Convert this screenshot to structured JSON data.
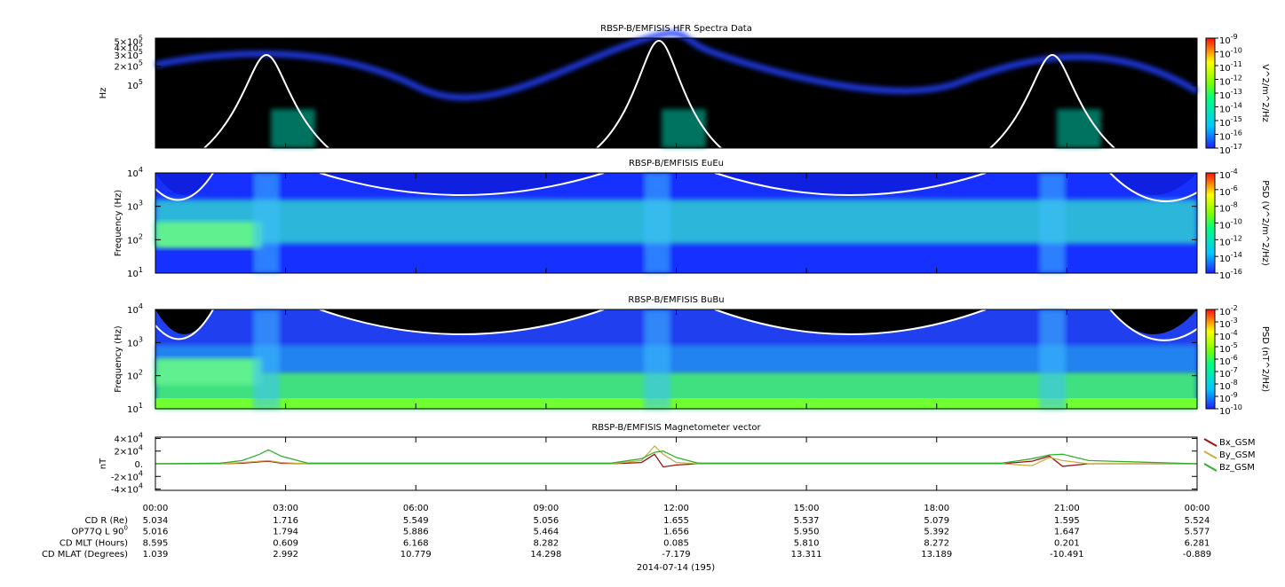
{
  "panels": [
    {
      "title": "RBSP-B/EMFISIS  HFR Spectra Data",
      "ylabel": "Hz",
      "cblabel": "V^2/m^2/Hz",
      "log": true,
      "ylim": [
        10000,
        560000
      ],
      "yticks": [
        {
          "value": 500000,
          "label": "5×10",
          "exp": "5"
        },
        {
          "value": 400000,
          "label": "4×10",
          "exp": "5"
        },
        {
          "value": 300000,
          "label": "3×10",
          "exp": "5"
        },
        {
          "value": 200000,
          "label": "2×10",
          "exp": "5"
        },
        {
          "value": 100000,
          "label": "10",
          "exp": "5"
        }
      ],
      "zlim": [
        1e-17,
        1e-09
      ],
      "zticks": [
        {
          "value": 1e-09,
          "label": "10",
          "exp": "-9"
        },
        {
          "value": 1e-10,
          "label": "10",
          "exp": "-10"
        },
        {
          "value": 1e-11,
          "label": "10",
          "exp": "-11"
        },
        {
          "value": 1e-12,
          "label": "10",
          "exp": "-12"
        },
        {
          "value": 1e-13,
          "label": "10",
          "exp": "-13"
        },
        {
          "value": 1e-14,
          "label": "10",
          "exp": "-14"
        },
        {
          "value": 1e-15,
          "label": "10",
          "exp": "-15"
        },
        {
          "value": 1e-16,
          "label": "10",
          "exp": "-16"
        },
        {
          "value": 1e-17,
          "label": "10",
          "exp": "-17"
        }
      ]
    },
    {
      "title": "RBSP-B/EMFISIS  EuEu",
      "ylabel": "Frequency (Hz)",
      "cblabel": "PSD (V^2/m^2/Hz)",
      "log": true,
      "ylim": [
        10,
        10000
      ],
      "yticks": [
        {
          "value": 10000,
          "label": "10",
          "exp": "4"
        },
        {
          "value": 1000,
          "label": "10",
          "exp": "3"
        },
        {
          "value": 100,
          "label": "10",
          "exp": "2"
        },
        {
          "value": 10,
          "label": "10",
          "exp": "1"
        }
      ],
      "zlim": [
        1e-16,
        0.0001
      ],
      "zticks": [
        {
          "value": 0.0001,
          "label": "10",
          "exp": "-4"
        },
        {
          "value": 1e-06,
          "label": "10",
          "exp": "-6"
        },
        {
          "value": 1e-08,
          "label": "10",
          "exp": "-8"
        },
        {
          "value": 1e-10,
          "label": "10",
          "exp": "-10"
        },
        {
          "value": 1e-12,
          "label": "10",
          "exp": "-12"
        },
        {
          "value": 1e-14,
          "label": "10",
          "exp": "-14"
        },
        {
          "value": 1e-16,
          "label": "10",
          "exp": "-16"
        }
      ]
    },
    {
      "title": "RBSP-B/EMFISIS  BuBu",
      "ylabel": "Frequency (Hz)",
      "cblabel": "PSD (nT^2/Hz)",
      "log": true,
      "ylim": [
        10,
        10000
      ],
      "yticks": [
        {
          "value": 10000,
          "label": "10",
          "exp": "4"
        },
        {
          "value": 1000,
          "label": "10",
          "exp": "3"
        },
        {
          "value": 100,
          "label": "10",
          "exp": "2"
        },
        {
          "value": 10,
          "label": "10",
          "exp": "1"
        }
      ],
      "zlim": [
        1e-10,
        0.01
      ],
      "zticks": [
        {
          "value": 0.01,
          "label": "10",
          "exp": "-2"
        },
        {
          "value": 0.001,
          "label": "10",
          "exp": "-3"
        },
        {
          "value": 0.0001,
          "label": "10",
          "exp": "-4"
        },
        {
          "value": 1e-05,
          "label": "10",
          "exp": "-5"
        },
        {
          "value": 1e-06,
          "label": "10",
          "exp": "-6"
        },
        {
          "value": 1e-07,
          "label": "10",
          "exp": "-7"
        },
        {
          "value": 1e-08,
          "label": "10",
          "exp": "-8"
        },
        {
          "value": 1e-09,
          "label": "10",
          "exp": "-9"
        },
        {
          "value": 1e-10,
          "label": "10",
          "exp": "-10"
        }
      ]
    },
    {
      "title": "RBSP-B/EMFISIS  Magnetometer vector",
      "ylabel": "nT",
      "log": false,
      "ylim": [
        -42000,
        42000
      ],
      "yticks": [
        {
          "value": 40000,
          "label": "4×10",
          "exp": "4"
        },
        {
          "value": 20000,
          "label": "2×10",
          "exp": "4"
        },
        {
          "value": 0,
          "label": "0."
        },
        {
          "value": -20000,
          "label": "-2×10",
          "exp": "4"
        },
        {
          "value": -40000,
          "label": "-4×10",
          "exp": "4"
        }
      ],
      "x": [
        0,
        1.5,
        2.0,
        2.4,
        2.6,
        2.9,
        3.5,
        10.5,
        11.2,
        11.5,
        11.7,
        12.0,
        12.5,
        19.5,
        20.2,
        20.6,
        20.9,
        21.5,
        24
      ],
      "series": [
        {
          "name": "Bx_GSM",
          "color": "#a01010",
          "values": [
            0,
            0,
            1000,
            3000,
            4000,
            1000,
            0,
            0,
            2000,
            15000,
            -5000,
            -2000,
            0,
            0,
            4000,
            12000,
            -4000,
            0,
            0
          ]
        },
        {
          "name": "By_GSM",
          "color": "#c8b040",
          "values": [
            0,
            0,
            2000,
            4000,
            5000,
            2000,
            0,
            0,
            5000,
            28000,
            15000,
            2000,
            0,
            0,
            -3000,
            10000,
            5000,
            0,
            0
          ]
        },
        {
          "name": "Bz_GSM",
          "color": "#30b030",
          "values": [
            0,
            1000,
            5000,
            15000,
            22000,
            12000,
            1000,
            1000,
            8000,
            18000,
            20000,
            10000,
            1000,
            1000,
            8000,
            14000,
            15000,
            5000,
            0
          ]
        }
      ]
    }
  ],
  "xlim": [
    0,
    24
  ],
  "xticks": [
    {
      "value": 0,
      "label": "00:00"
    },
    {
      "value": 3,
      "label": "03:00"
    },
    {
      "value": 6,
      "label": "06:00"
    },
    {
      "value": 9,
      "label": "09:00"
    },
    {
      "value": 12,
      "label": "12:00"
    },
    {
      "value": 15,
      "label": "15:00"
    },
    {
      "value": 18,
      "label": "18:00"
    },
    {
      "value": 21,
      "label": "21:00"
    },
    {
      "value": 24,
      "label": "00:00"
    }
  ],
  "ephemeris": [
    {
      "name": "CD R (Re)",
      "values": [
        "5.034",
        "1.716",
        "5.549",
        "5.056",
        "1.655",
        "5.537",
        "5.079",
        "1.595",
        "5.524"
      ]
    },
    {
      "name": "OP77Q L 90",
      "sup": "0",
      "values": [
        "5.016",
        "1.794",
        "5.886",
        "5.464",
        "1.656",
        "5.950",
        "5.392",
        "1.647",
        "5.577"
      ]
    },
    {
      "name": "CD MLT (Hours)",
      "values": [
        "8.595",
        "0.609",
        "6.168",
        "8.282",
        "0.085",
        "5.810",
        "8.272",
        "0.201",
        "6.281"
      ]
    },
    {
      "name": "CD MLAT (Degrees)",
      "values": [
        "1.039",
        "2.992",
        "10.779",
        "14.298",
        "-7.179",
        "13.311",
        "13.189",
        "-10.491",
        "-0.889"
      ]
    }
  ],
  "date": "2014-07-14 (195)"
}
